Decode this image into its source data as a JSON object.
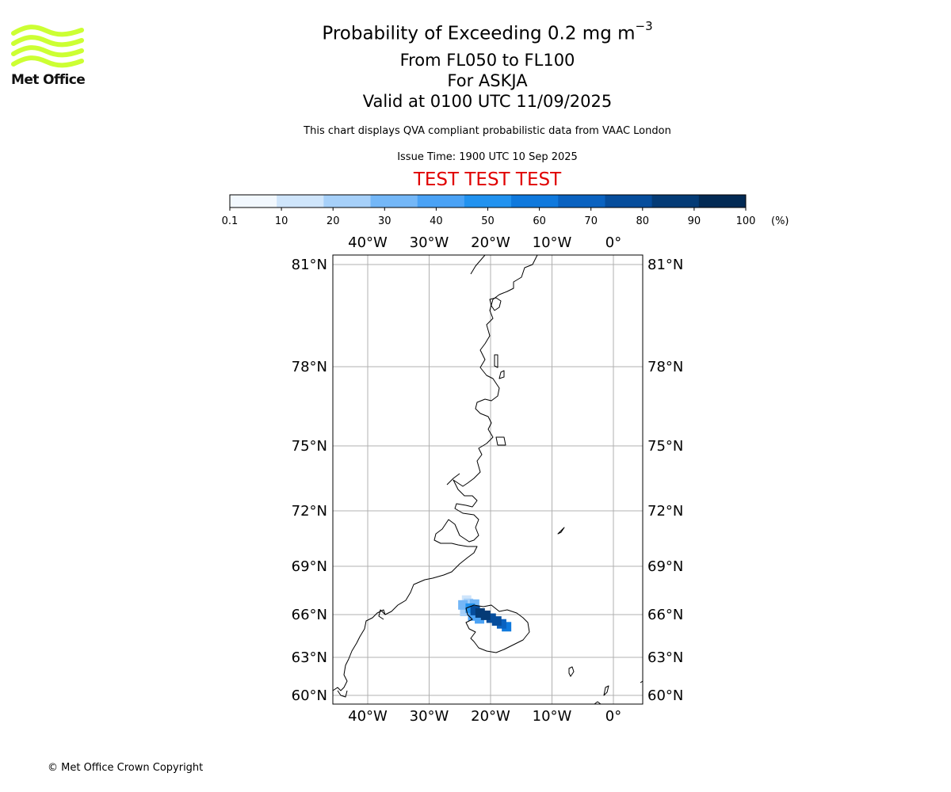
{
  "header": {
    "title": "Probability of Exceeding 0.2 mg m",
    "title_superscript": "−3",
    "levels": "From FL050 to FL100",
    "volcano": "For ASKJA",
    "valid": "Valid at 0100 UTC 11/09/2025",
    "note": "This chart displays QVA compliant probabilistic data from VAAC London",
    "issue_time": "Issue Time: 1900 UTC 10 Sep 2025",
    "test_banner": "TEST TEST TEST"
  },
  "logo": {
    "text": "Met Office",
    "color": "#ccff33"
  },
  "colorbar": {
    "ticks": [
      "0.1",
      "10",
      "20",
      "30",
      "40",
      "50",
      "60",
      "70",
      "80",
      "90",
      "100"
    ],
    "unit": "(%)",
    "colors": [
      "#f2f8fe",
      "#cfe5fb",
      "#a6d0f9",
      "#74b7f7",
      "#4aa2f5",
      "#2192ef",
      "#0f79dd",
      "#0a62c0",
      "#064d9c",
      "#043b76",
      "#022a54"
    ]
  },
  "map": {
    "lon_ticks": [
      {
        "value": -40,
        "label": "40°W"
      },
      {
        "value": -30,
        "label": "30°W"
      },
      {
        "value": -20,
        "label": "20°W"
      },
      {
        "value": -10,
        "label": "10°W"
      },
      {
        "value": 0,
        "label": "0°"
      }
    ],
    "lat_ticks": [
      {
        "value": 81,
        "label": "81°N"
      },
      {
        "value": 78,
        "label": "78°N"
      },
      {
        "value": 75,
        "label": "75°N"
      },
      {
        "value": 72,
        "label": "72°N"
      },
      {
        "value": 69,
        "label": "69°N"
      },
      {
        "value": 66,
        "label": "66°N"
      },
      {
        "value": 63,
        "label": "63°N"
      },
      {
        "value": 60,
        "label": "60°N"
      }
    ],
    "extent": {
      "lon": [
        -45.7,
        4.8
      ],
      "lat": [
        59.6,
        81.3
      ]
    },
    "grid": true,
    "coast_color": "#000000",
    "ash_probability": [
      {
        "lon": -24.2,
        "lat": 66.2,
        "p": 25
      },
      {
        "lon": -23.6,
        "lat": 66.7,
        "p": 20
      },
      {
        "lon": -24.5,
        "lat": 66.6,
        "p": 35
      },
      {
        "lon": -23.3,
        "lat": 66.4,
        "p": 55
      },
      {
        "lon": -22.5,
        "lat": 66.25,
        "p": 85
      },
      {
        "lon": -21.7,
        "lat": 66.1,
        "p": 92
      },
      {
        "lon": -20.8,
        "lat": 65.95,
        "p": 95
      },
      {
        "lon": -19.9,
        "lat": 65.75,
        "p": 88
      },
      {
        "lon": -19.0,
        "lat": 65.55,
        "p": 80
      },
      {
        "lon": -18.2,
        "lat": 65.35,
        "p": 70
      },
      {
        "lon": -17.4,
        "lat": 65.15,
        "p": 60
      },
      {
        "lon": -22.9,
        "lat": 65.9,
        "p": 45
      },
      {
        "lon": -21.8,
        "lat": 65.7,
        "p": 40
      },
      {
        "lon": -23.9,
        "lat": 66.9,
        "p": 12
      },
      {
        "lon": -22.6,
        "lat": 66.65,
        "p": 30
      }
    ]
  },
  "footer": {
    "copyright": "© Met Office Crown Copyright"
  }
}
